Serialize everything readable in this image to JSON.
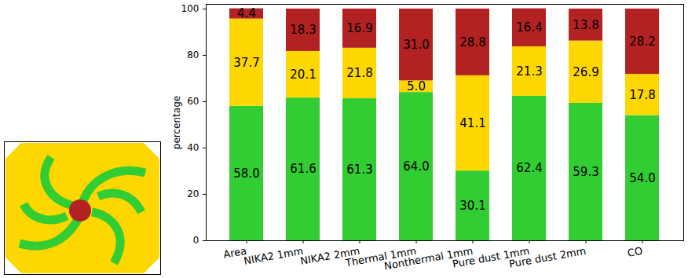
{
  "chart_data": {
    "type": "bar",
    "stacked": true,
    "data_labels": true,
    "grid": false,
    "y_label": "percentage",
    "categories": [
      "Area",
      "NIKA2 1mm",
      "NIKA2 2mm",
      "Thermal 1mm",
      "Nonthermal 1mm",
      "Pure dust 1mm",
      "Pure dust 2mm",
      "CO"
    ],
    "series": [
      {
        "color": "#32cd32",
        "values": [
          58.0,
          61.6,
          61.3,
          64.0,
          30.1,
          62.4,
          59.3,
          54.0
        ],
        "value_labels": [
          "58.0",
          "61.6",
          "61.3",
          "64.0",
          "30.1",
          "62.4",
          "59.3",
          "54.0"
        ]
      },
      {
        "color": "#ffd700",
        "values": [
          37.7,
          20.1,
          21.8,
          5.0,
          41.1,
          21.3,
          26.9,
          17.8
        ],
        "value_labels": [
          "37.7",
          "20.1",
          "21.8",
          "5.0",
          "41.1",
          "21.3",
          "26.9",
          "17.8"
        ]
      },
      {
        "color": "#b22222",
        "values": [
          4.4,
          18.3,
          16.9,
          31.0,
          28.8,
          16.4,
          13.8,
          28.2
        ],
        "value_labels": [
          "4.4",
          "18.3",
          "16.9",
          "31.0",
          "28.8",
          "16.4",
          "13.8",
          "28.2"
        ]
      }
    ],
    "ylim": [
      0,
      102
    ],
    "yticks": [
      0,
      20,
      40,
      60,
      80,
      100
    ]
  }
}
